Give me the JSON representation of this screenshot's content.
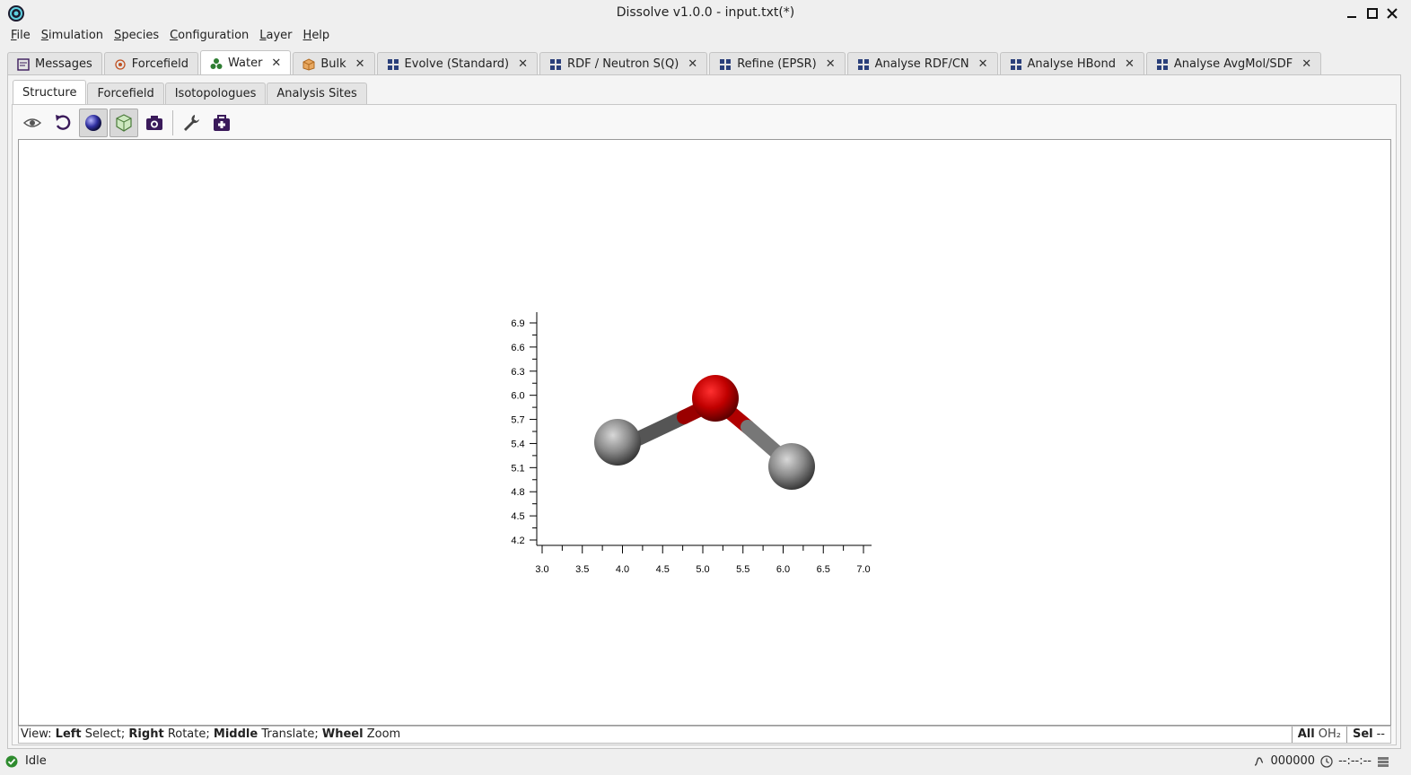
{
  "window": {
    "title": "Dissolve v1.0.0 - input.txt(*)"
  },
  "menu": [
    {
      "label": "File",
      "mnemonic": "F",
      "rest": "ile"
    },
    {
      "label": "Simulation",
      "mnemonic": "S",
      "rest": "imulation"
    },
    {
      "label": "Species",
      "mnemonic": "S",
      "rest": "pecies"
    },
    {
      "label": "Configuration",
      "mnemonic": "C",
      "rest": "onfiguration"
    },
    {
      "label": "Layer",
      "mnemonic": "L",
      "rest": "ayer"
    },
    {
      "label": "Help",
      "mnemonic": "H",
      "rest": "elp"
    }
  ],
  "main_tabs": [
    {
      "label": "Messages",
      "icon": "messages-icon",
      "closable": false,
      "active": false
    },
    {
      "label": "Forcefield",
      "icon": "forcefield-icon",
      "closable": false,
      "active": false
    },
    {
      "label": "Water",
      "icon": "species-icon",
      "closable": true,
      "active": true
    },
    {
      "label": "Bulk",
      "icon": "configuration-box-icon",
      "closable": true,
      "active": false
    },
    {
      "label": "Evolve (Standard)",
      "icon": "layer-icon",
      "closable": true,
      "active": false
    },
    {
      "label": "RDF / Neutron S(Q)",
      "icon": "layer-icon",
      "closable": true,
      "active": false
    },
    {
      "label": "Refine (EPSR)",
      "icon": "layer-icon",
      "closable": true,
      "active": false
    },
    {
      "label": "Analyse RDF/CN",
      "icon": "layer-icon",
      "closable": true,
      "active": false
    },
    {
      "label": "Analyse HBond",
      "icon": "layer-icon",
      "closable": true,
      "active": false
    },
    {
      "label": "Analyse AvgMol/SDF",
      "icon": "layer-icon",
      "closable": true,
      "active": false
    }
  ],
  "sub_tabs": [
    {
      "label": "Structure",
      "active": true
    },
    {
      "label": "Forcefield",
      "active": false
    },
    {
      "label": "Isotopologues",
      "active": false
    },
    {
      "label": "Analysis Sites",
      "active": false
    }
  ],
  "toolbar": [
    {
      "icon": "eye-icon",
      "pressed": false
    },
    {
      "icon": "reset-view-icon",
      "pressed": false
    },
    {
      "icon": "sphere-style-icon",
      "pressed": true
    },
    {
      "icon": "box-icon",
      "pressed": true
    },
    {
      "icon": "camera-icon",
      "pressed": false
    },
    {
      "icon": "wrench-icon",
      "pressed": false
    },
    {
      "icon": "medkit-icon",
      "pressed": false
    }
  ],
  "viewer": {
    "y_ticks": [
      "6.9",
      "6.6",
      "6.3",
      "6.0",
      "5.7",
      "5.4",
      "5.1",
      "4.8",
      "4.5",
      "4.2"
    ],
    "x_ticks": [
      "3.0",
      "3.5",
      "4.0",
      "4.5",
      "5.0",
      "5.5",
      "6.0",
      "6.5",
      "7.0"
    ],
    "atoms": [
      {
        "element": "O",
        "color": "#c00000"
      },
      {
        "element": "H",
        "color": "#a0a0a0"
      },
      {
        "element": "H",
        "color": "#a0a0a0"
      }
    ]
  },
  "viewer_status": {
    "prefix": "View:",
    "hints": [
      {
        "key": "Left",
        "action": "Select;"
      },
      {
        "key": "Right",
        "action": "Rotate;"
      },
      {
        "key": "Middle",
        "action": "Translate;"
      },
      {
        "key": "Wheel",
        "action": "Zoom"
      }
    ],
    "all_label": "All",
    "all_value": "OH₂",
    "sel_label": "Sel",
    "sel_value": "--"
  },
  "statusbar": {
    "state": "Idle",
    "iteration": "000000",
    "time": "--:--:--"
  },
  "colors": {
    "accent": "#3a1a5a",
    "oxygen": "#c00000",
    "hydrogen": "#a0a0a0",
    "idle_green": "#2e8b2e"
  }
}
